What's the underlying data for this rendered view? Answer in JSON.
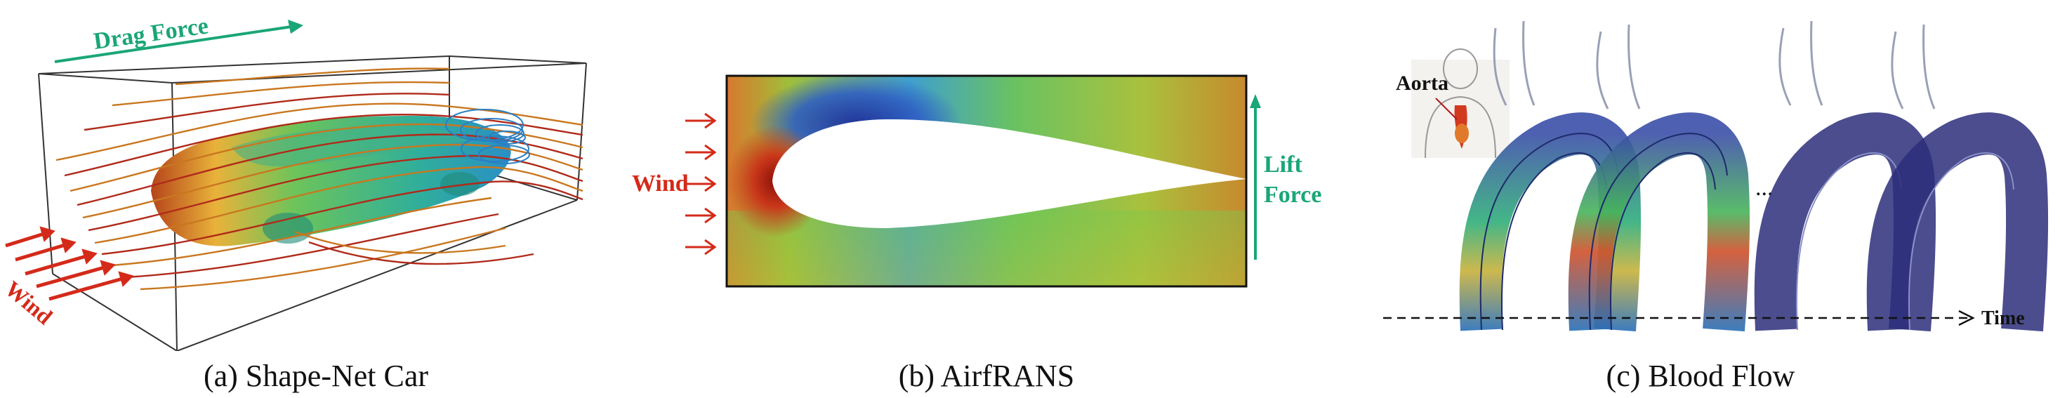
{
  "panels": {
    "a": {
      "caption": "(a) Shape-Net Car",
      "labels": {
        "drag_force": "Drag Force",
        "wind": "Wind"
      }
    },
    "b": {
      "caption": "(b) AirfRANS",
      "labels": {
        "wind": "Wind",
        "lift_line1": "Lift",
        "lift_line2": "Force"
      }
    },
    "c": {
      "caption": "(c) Blood Flow",
      "labels": {
        "aorta": "Aorta",
        "ellipsis": "...",
        "time": "Time"
      }
    }
  },
  "colors": {
    "drag_green": "#1aa676",
    "lift_green": "#1aa676",
    "wind_red": "#d42a1a",
    "streamline_orange": "#c9771f",
    "streamline_red": "#b02a1a",
    "vessel_blue": "#2b2e7a"
  }
}
